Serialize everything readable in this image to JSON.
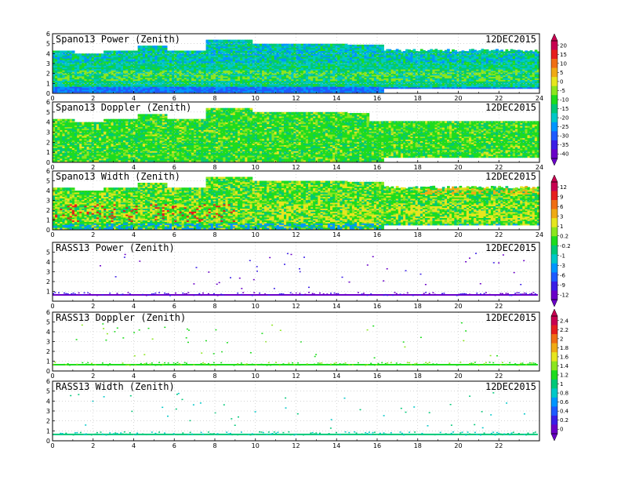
{
  "date": "12DEC2015",
  "chart_data": [
    {
      "type": "heatmap",
      "title": "Spano13 Power (Zenith)",
      "xlim": [
        0,
        24
      ],
      "ylim": [
        0,
        6
      ],
      "x_ticks": [
        "0",
        "2",
        "4",
        "6",
        "8",
        "10",
        "12",
        "14",
        "16",
        "18",
        "20",
        "22",
        "24"
      ],
      "y_ticks": [
        "0",
        "1",
        "2",
        "3",
        "4",
        "5",
        "6"
      ],
      "grid": true,
      "colorbar": 0,
      "style": "dense"
    },
    {
      "type": "heatmap",
      "title": "Spano13 Doppler (Zenith)",
      "xlim": [
        0,
        24
      ],
      "ylim": [
        0,
        6
      ],
      "x_ticks": [
        "0",
        "2",
        "4",
        "6",
        "8",
        "10",
        "12",
        "14",
        "16",
        "18",
        "20",
        "22",
        "24"
      ],
      "y_ticks": [
        "0",
        "1",
        "2",
        "3",
        "4",
        "5",
        "6"
      ],
      "grid": true,
      "colorbar": 0,
      "style": "dense"
    },
    {
      "type": "heatmap",
      "title": "Spano13 Width (Zenith)",
      "xlim": [
        0,
        24
      ],
      "ylim": [
        0,
        6
      ],
      "x_ticks": [
        "0",
        "2",
        "4",
        "6",
        "8",
        "10",
        "12",
        "14",
        "16",
        "18",
        "20",
        "22",
        "24"
      ],
      "y_ticks": [
        "0",
        "1",
        "2",
        "3",
        "4",
        "5",
        "6"
      ],
      "grid": true,
      "colorbar": 1,
      "style": "dense"
    },
    {
      "type": "heatmap",
      "title": "RASS13 Power (Zenith)",
      "xlim": [
        0,
        24
      ],
      "ylim": [
        0,
        6
      ],
      "x_ticks": [
        "0",
        "2",
        "4",
        "6",
        "8",
        "10",
        "12",
        "14",
        "16",
        "18",
        "20",
        "22"
      ],
      "y_ticks": [
        "1",
        "2",
        "3",
        "4",
        "5"
      ],
      "grid": true,
      "colorbar": 1,
      "style": "sparse"
    },
    {
      "type": "heatmap",
      "title": "RASS13 Doppler (Zenith)",
      "xlim": [
        0,
        24
      ],
      "ylim": [
        0,
        6
      ],
      "x_ticks": [
        "0",
        "2",
        "4",
        "6",
        "8",
        "10",
        "12",
        "14",
        "16",
        "18",
        "20",
        "22"
      ],
      "y_ticks": [
        "0",
        "1",
        "2",
        "3",
        "4",
        "5",
        "6"
      ],
      "grid": true,
      "colorbar": 2,
      "style": "sparse"
    },
    {
      "type": "heatmap",
      "title": "RASS13 Width (Zenith)",
      "xlim": [
        0,
        24
      ],
      "ylim": [
        0,
        6
      ],
      "x_ticks": [
        "0",
        "2",
        "4",
        "6",
        "8",
        "10",
        "12",
        "14",
        "16",
        "18",
        "20",
        "22"
      ],
      "y_ticks": [
        "0",
        "1",
        "2",
        "3",
        "4",
        "5",
        "6"
      ],
      "grid": true,
      "colorbar": 2,
      "style": "sparse"
    }
  ],
  "colorbars": [
    {
      "labels": [
        "20",
        "15",
        "10",
        "5",
        "0",
        "-5",
        "-10",
        "-15",
        "-20",
        "-25",
        "-30",
        "-35",
        "-40"
      ]
    },
    {
      "labels": [
        "12",
        "9",
        "6",
        "3",
        "1",
        "0.2",
        "-0.2",
        "-1",
        "-3",
        "-6",
        "-9",
        "-12"
      ]
    },
    {
      "labels": [
        "2.4",
        "2.2",
        "2",
        "1.8",
        "1.6",
        "1.4",
        "1.2",
        "1",
        "0.8",
        "0.6",
        "0.4",
        "0.2",
        "0"
      ]
    }
  ],
  "colors": [
    "#6a00c8",
    "#3a1ee6",
    "#1e5aff",
    "#0096ff",
    "#00c8c8",
    "#00c878",
    "#1edc1e",
    "#8ce61e",
    "#e6e61e",
    "#f0aa14",
    "#f06e14",
    "#e61e1e",
    "#c80050"
  ]
}
